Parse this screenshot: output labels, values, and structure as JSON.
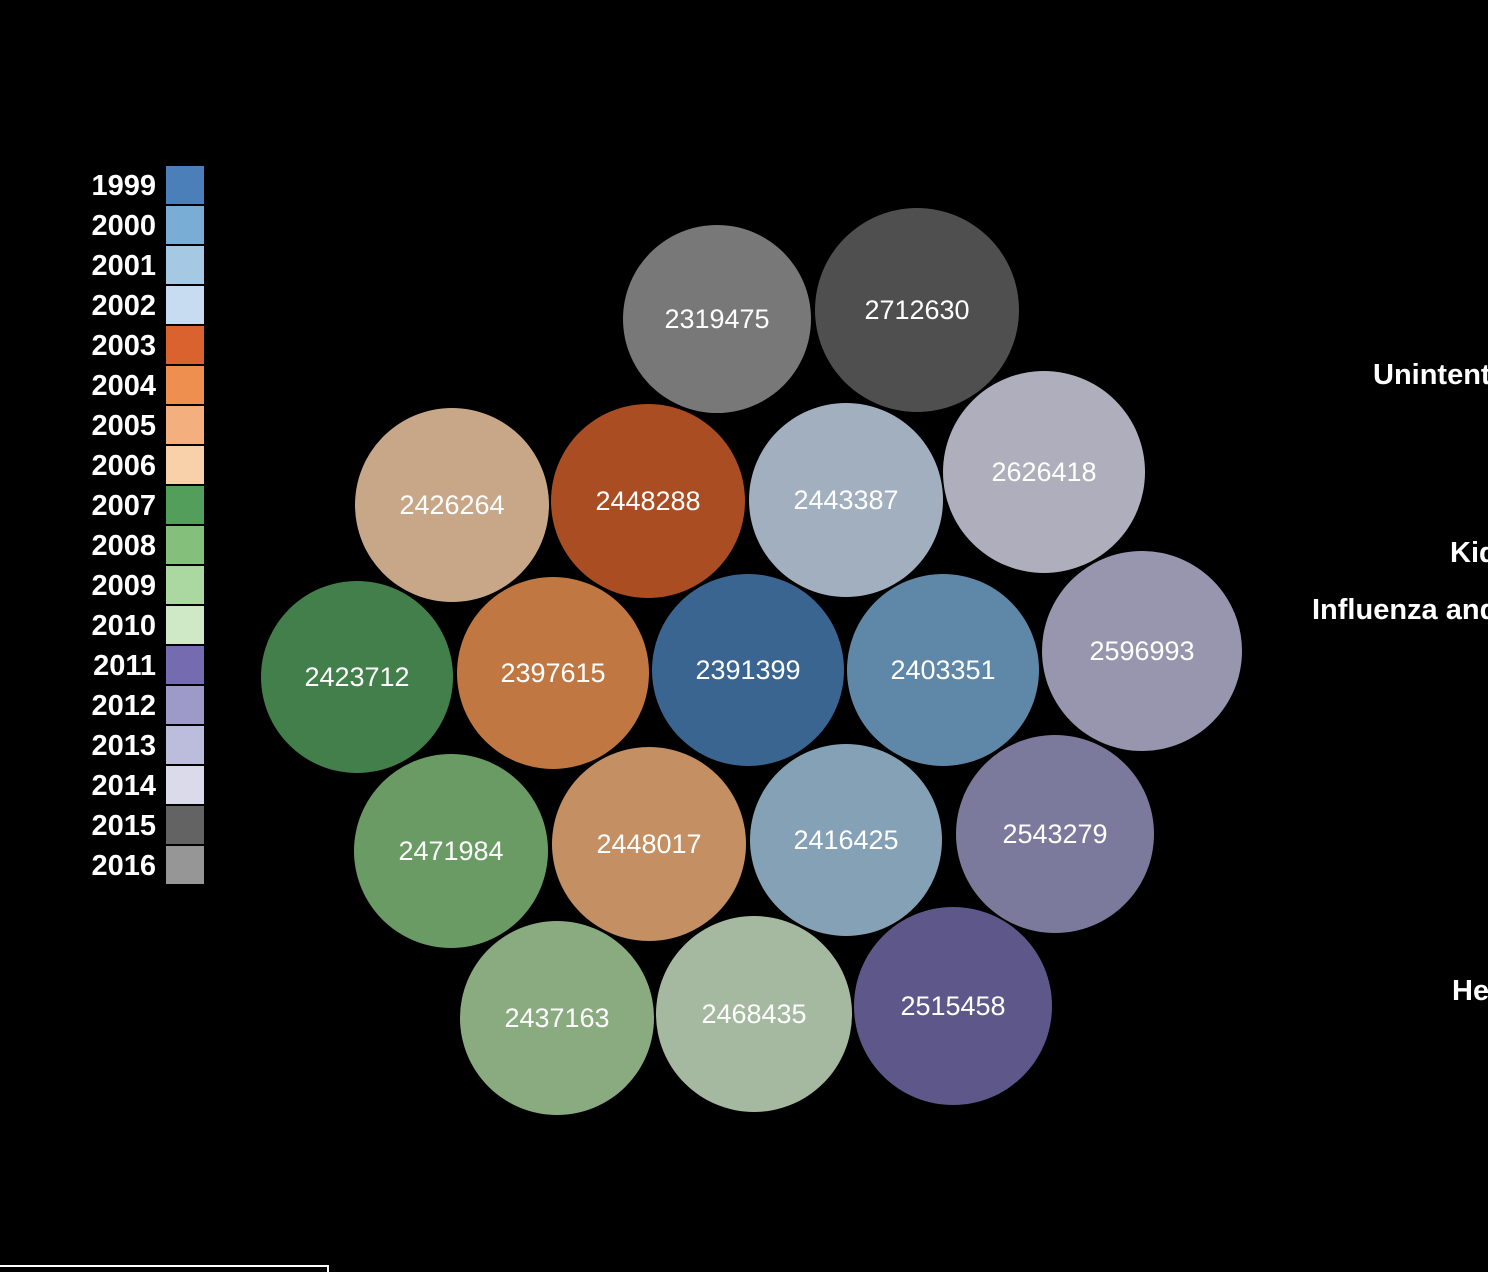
{
  "chart_data": {
    "type": "bubble",
    "title": "",
    "legend": {
      "placement": "left",
      "items": [
        {
          "label": "1999",
          "color": "#4a7fba"
        },
        {
          "label": "2000",
          "color": "#7aadd6"
        },
        {
          "label": "2001",
          "color": "#a5c8e3"
        },
        {
          "label": "2002",
          "color": "#c7dcf0"
        },
        {
          "label": "2003",
          "color": "#d9622e"
        },
        {
          "label": "2004",
          "color": "#ee8f50"
        },
        {
          "label": "2005",
          "color": "#f3b07e"
        },
        {
          "label": "2006",
          "color": "#f8d1ab"
        },
        {
          "label": "2007",
          "color": "#549e5c"
        },
        {
          "label": "2008",
          "color": "#84c07b"
        },
        {
          "label": "2009",
          "color": "#abd8a0"
        },
        {
          "label": "2010",
          "color": "#cfe9c7"
        },
        {
          "label": "2011",
          "color": "#756bb1"
        },
        {
          "label": "2012",
          "color": "#9e9ac8"
        },
        {
          "label": "2013",
          "color": "#bcbddc"
        },
        {
          "label": "2014",
          "color": "#dadaeb"
        },
        {
          "label": "2015",
          "color": "#636363"
        },
        {
          "label": "2016",
          "color": "#969696"
        }
      ]
    },
    "bubbles": [
      {
        "year": "1999",
        "value": 2391399,
        "color": "#3a6591"
      },
      {
        "year": "2000",
        "value": 2403351,
        "color": "#5f87a8"
      },
      {
        "year": "2001",
        "value": 2416425,
        "color": "#84a1b5"
      },
      {
        "year": "2002",
        "value": 2443387,
        "color": "#a1afbf"
      },
      {
        "year": "2003",
        "value": 2448288,
        "color": "#aa4d23"
      },
      {
        "year": "2004",
        "value": 2397615,
        "color": "#c07741"
      },
      {
        "year": "2005",
        "value": 2448017,
        "color": "#c48f62"
      },
      {
        "year": "2006",
        "value": 2426264,
        "color": "#c7a787"
      },
      {
        "year": "2007",
        "value": 2423712,
        "color": "#437f4a"
      },
      {
        "year": "2008",
        "value": 2471984,
        "color": "#6a9b64"
      },
      {
        "year": "2009",
        "value": 2437163,
        "color": "#8aab80"
      },
      {
        "year": "2010",
        "value": 2468435,
        "color": "#a5b9a0"
      },
      {
        "year": "2011",
        "value": 2515458,
        "color": "#5d578a"
      },
      {
        "year": "2012",
        "value": 2543279,
        "color": "#7b7a9c"
      },
      {
        "year": "2013",
        "value": 2596993,
        "color": "#9796ae"
      },
      {
        "year": "2014",
        "value": 2626418,
        "color": "#aeaebc"
      },
      {
        "year": "2015",
        "value": 2712630,
        "color": "#4f4f4f"
      },
      {
        "year": "2016",
        "value": 2319475,
        "color": "#787878"
      }
    ],
    "side_labels": [
      "Unintent",
      "Kid",
      "Influenza and",
      "He"
    ]
  }
}
